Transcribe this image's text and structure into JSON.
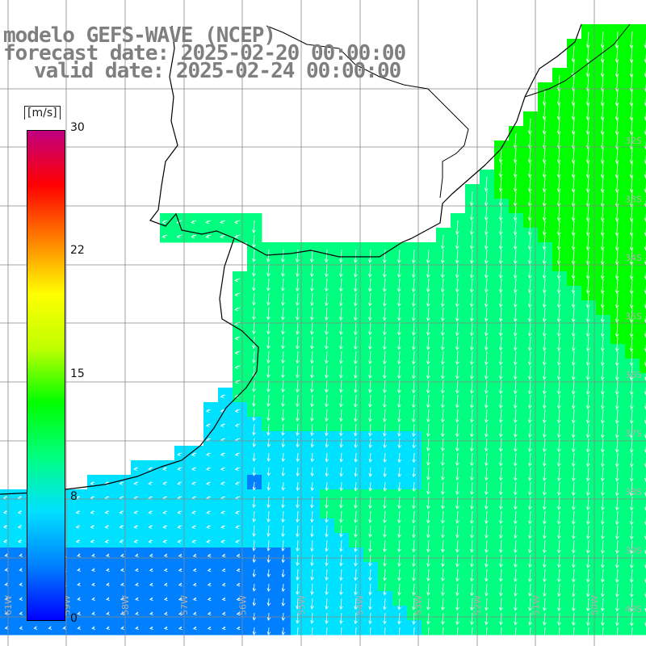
{
  "title": {
    "model": "modelo GEFS-WAVE (NCEP)",
    "forecast": "forecast date: 2025-02-20 00:00:00",
    "valid": "valid date: 2025-02-24 00:00:00"
  },
  "legend": {
    "unit": "[m/s]",
    "ticks": [
      "30",
      "22",
      "15",
      "8",
      "0"
    ],
    "tick_values": [
      30,
      22,
      15,
      8,
      0
    ],
    "min": 0,
    "max": 30,
    "colors": [
      "#0000ff",
      "#0080ff",
      "#00e0ff",
      "#00ff80",
      "#00ff00",
      "#c0ff00",
      "#ffff00",
      "#ff8000",
      "#ff0000",
      "#c00080"
    ]
  },
  "grid": {
    "lat_labels": [
      "32S",
      "33S",
      "34S",
      "35S",
      "36S",
      "37S",
      "38S",
      "39S",
      "40S"
    ],
    "lon_labels": [
      "61W",
      "59W",
      "58W",
      "57W",
      "56W",
      "55W",
      "54W",
      "53W",
      "52W",
      "51W",
      "50W"
    ]
  },
  "colors": {
    "land": "#ffffff",
    "coast": "#000000",
    "grid": "#888888",
    "vectors": "#ffffff",
    "title": "#7f7f7f"
  }
}
